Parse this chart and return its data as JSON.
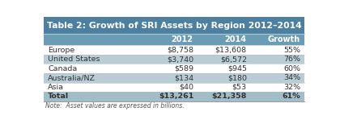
{
  "title": "Table 2: Growth of SRI Assets by Region 2012–2014",
  "columns": [
    "",
    "2012",
    "2014",
    "Growth"
  ],
  "rows": [
    [
      "Europe",
      "$8,758",
      "$13,608",
      "55%"
    ],
    [
      "United States",
      "$3,740",
      "$6,572",
      "76%"
    ],
    [
      "Canada",
      "$589",
      "$945",
      "60%"
    ],
    [
      "Australia/NZ",
      "$134",
      "$180",
      "34%"
    ],
    [
      "Asia",
      "$40",
      "$53",
      "32%"
    ],
    [
      "Total",
      "$13,261",
      "$21,358",
      "61%"
    ]
  ],
  "note": "Note:  Asset values are expressed in billions.",
  "title_bg": "#4d7fa0",
  "header_bg": "#6a9db5",
  "row_bg_shaded": "#b8cdd6",
  "row_bg_white": "#ffffff",
  "total_bg": "#a0bdc8",
  "title_color": "#ffffff",
  "header_color": "#ffffff",
  "row_color": "#333333",
  "total_color": "#333333",
  "note_color": "#555555",
  "border_color": "#888888",
  "fig_bg": "#ffffff"
}
